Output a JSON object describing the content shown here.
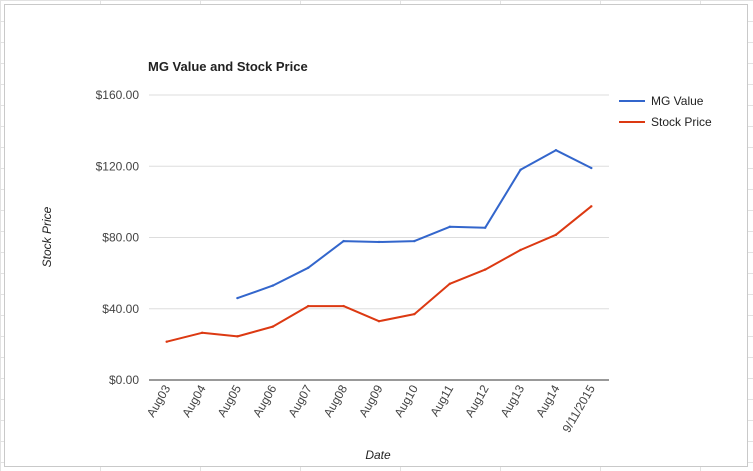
{
  "chart_data": {
    "type": "line",
    "title": "MG Value and Stock Price",
    "xlabel": "Date",
    "ylabel": "Stock Price",
    "categories": [
      "Aug03",
      "Aug04",
      "Aug05",
      "Aug06",
      "Aug07",
      "Aug08",
      "Aug09",
      "Aug10",
      "Aug11",
      "Aug12",
      "Aug13",
      "Aug14",
      "9/11/2015"
    ],
    "y_ticks": [
      "$0.00",
      "$40.00",
      "$80.00",
      "$120.00",
      "$160.00"
    ],
    "ylim": [
      0,
      160
    ],
    "grid": true,
    "legend_position": "right",
    "series": [
      {
        "name": "MG Value",
        "color": "#3366cc",
        "values": [
          null,
          null,
          46,
          53,
          63,
          78,
          77.5,
          78,
          86,
          85.5,
          118,
          129,
          119
        ]
      },
      {
        "name": "Stock Price",
        "color": "#dc3912",
        "values": [
          21.5,
          26.5,
          24.5,
          30,
          41.5,
          41.5,
          33,
          37,
          54,
          62,
          73,
          81.5,
          97.5
        ]
      }
    ]
  }
}
